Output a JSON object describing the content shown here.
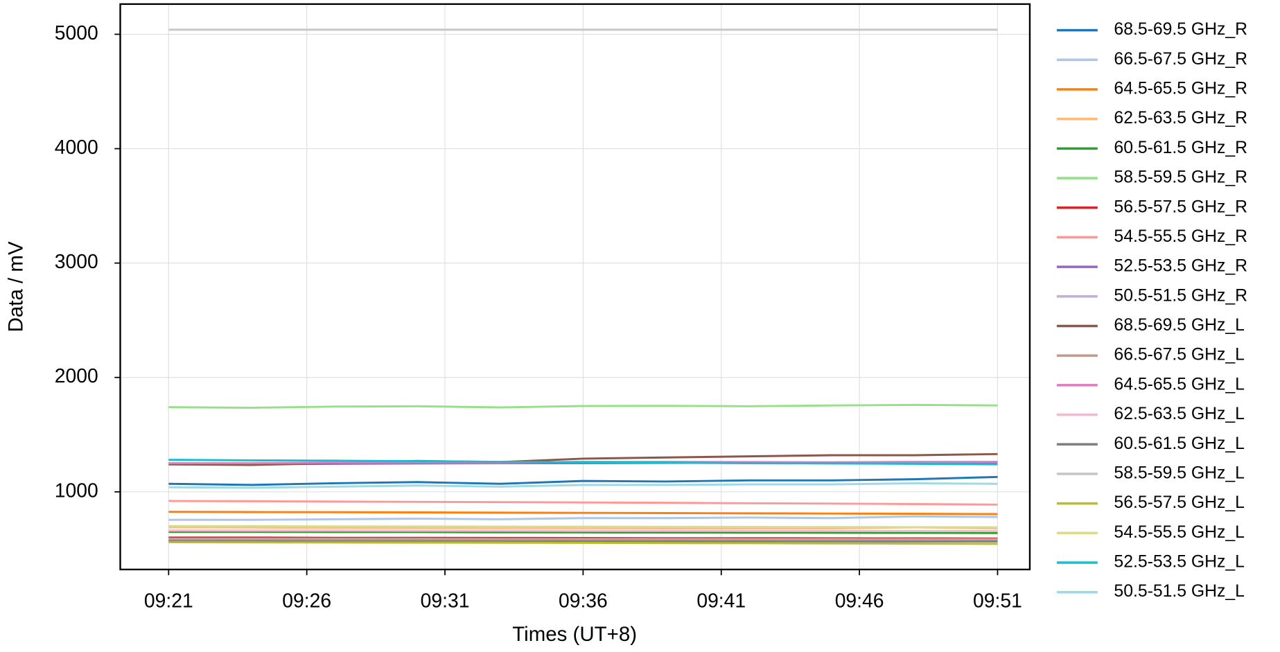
{
  "chart_data": {
    "type": "line",
    "x_label": "Times (UT+8)",
    "y_label": "Data / mV",
    "x": [
      "09:21",
      "09:24",
      "09:27",
      "09:30",
      "09:33",
      "09:36",
      "09:39",
      "09:42",
      "09:45",
      "09:48",
      "09:51"
    ],
    "xlim": [
      "09:19:15",
      "09:52:10"
    ],
    "xticks": [
      "09:21",
      "09:26",
      "09:31",
      "09:36",
      "09:41",
      "09:46",
      "09:51"
    ],
    "ylim": [
      321,
      5264
    ],
    "yticks": [
      1000,
      2000,
      3000,
      4000,
      5000
    ],
    "grid": true,
    "legend": "right-outside",
    "series": [
      {
        "name": "68.5-69.5 GHz_R",
        "color": "#1f77b4",
        "values": [
          1070,
          1060,
          1075,
          1085,
          1070,
          1095,
          1090,
          1100,
          1100,
          1110,
          1130
        ]
      },
      {
        "name": "66.5-67.5 GHz_R",
        "color": "#aec7e8",
        "values": [
          755,
          755,
          760,
          765,
          760,
          770,
          770,
          775,
          770,
          785,
          780
        ]
      },
      {
        "name": "64.5-65.5 GHz_R",
        "color": "#ff7f0e",
        "values": [
          825,
          823,
          822,
          820,
          818,
          816,
          814,
          812,
          810,
          808,
          805
        ]
      },
      {
        "name": "62.5-63.5 GHz_R",
        "color": "#ffbb78",
        "values": [
          690,
          688,
          686,
          684,
          683,
          682,
          680,
          680,
          680,
          690,
          680
        ]
      },
      {
        "name": "60.5-61.5 GHz_R",
        "color": "#2ca02c",
        "values": [
          650,
          650,
          648,
          648,
          646,
          645,
          644,
          643,
          642,
          641,
          640
        ]
      },
      {
        "name": "58.5-59.5 GHz_R",
        "color": "#98df8a",
        "values": [
          1740,
          1735,
          1745,
          1748,
          1738,
          1750,
          1752,
          1748,
          1755,
          1760,
          1755
        ]
      },
      {
        "name": "56.5-57.5 GHz_R",
        "color": "#d62728",
        "values": [
          600,
          600,
          598,
          598,
          597,
          596,
          595,
          595,
          594,
          593,
          592
        ]
      },
      {
        "name": "54.5-55.5 GHz_R",
        "color": "#ff9896",
        "values": [
          920,
          918,
          915,
          912,
          910,
          907,
          904,
          900,
          897,
          893,
          888
        ]
      },
      {
        "name": "52.5-53.5 GHz_R",
        "color": "#9467bd",
        "values": [
          1240,
          1242,
          1245,
          1248,
          1250,
          1250,
          1252,
          1255,
          1250,
          1255,
          1255
        ]
      },
      {
        "name": "50.5-51.5 GHz_R",
        "color": "#c5b0d5",
        "values": [
          580,
          580,
          579,
          579,
          578,
          578,
          578,
          577,
          577,
          576,
          576
        ]
      },
      {
        "name": "68.5-69.5 GHz_L",
        "color": "#8c564b",
        "values": [
          1240,
          1235,
          1250,
          1270,
          1260,
          1290,
          1300,
          1310,
          1320,
          1320,
          1330
        ]
      },
      {
        "name": "66.5-67.5 GHz_L",
        "color": "#c49c94",
        "values": [
          590,
          590,
          589,
          589,
          588,
          588,
          588,
          587,
          587,
          586,
          586
        ]
      },
      {
        "name": "64.5-65.5 GHz_L",
        "color": "#e377c2",
        "values": [
          1250,
          1250,
          1255,
          1258,
          1255,
          1262,
          1262,
          1260,
          1258,
          1262,
          1262
        ]
      },
      {
        "name": "62.5-63.5 GHz_L",
        "color": "#f7b6d2",
        "values": [
          662,
          661,
          661,
          660,
          660,
          659,
          659,
          658,
          658,
          657,
          657
        ]
      },
      {
        "name": "60.5-61.5 GHz_L",
        "color": "#7f7f7f",
        "values": [
          570,
          570,
          569,
          569,
          568,
          568,
          568,
          567,
          567,
          566,
          566
        ]
      },
      {
        "name": "58.5-59.5 GHz_L",
        "color": "#c7c7c7",
        "values": [
          5040,
          5040,
          5040,
          5040,
          5040,
          5040,
          5040,
          5040,
          5040,
          5040,
          5040
        ]
      },
      {
        "name": "56.5-57.5 GHz_L",
        "color": "#bcbd22",
        "values": [
          560,
          558,
          557,
          556,
          555,
          554,
          552,
          551,
          549,
          547,
          545
        ]
      },
      {
        "name": "54.5-55.5 GHz_L",
        "color": "#dbdb8d",
        "values": [
          700,
          699,
          698,
          697,
          696,
          695,
          694,
          693,
          692,
          691,
          690
        ]
      },
      {
        "name": "52.5-53.5 GHz_L",
        "color": "#17becf",
        "values": [
          1280,
          1275,
          1272,
          1268,
          1262,
          1258,
          1255,
          1250,
          1248,
          1245,
          1240
        ]
      },
      {
        "name": "50.5-51.5 GHz_L",
        "color": "#9edae5",
        "values": [
          1040,
          1035,
          1045,
          1055,
          1045,
          1060,
          1060,
          1065,
          1065,
          1075,
          1070
        ]
      }
    ]
  }
}
